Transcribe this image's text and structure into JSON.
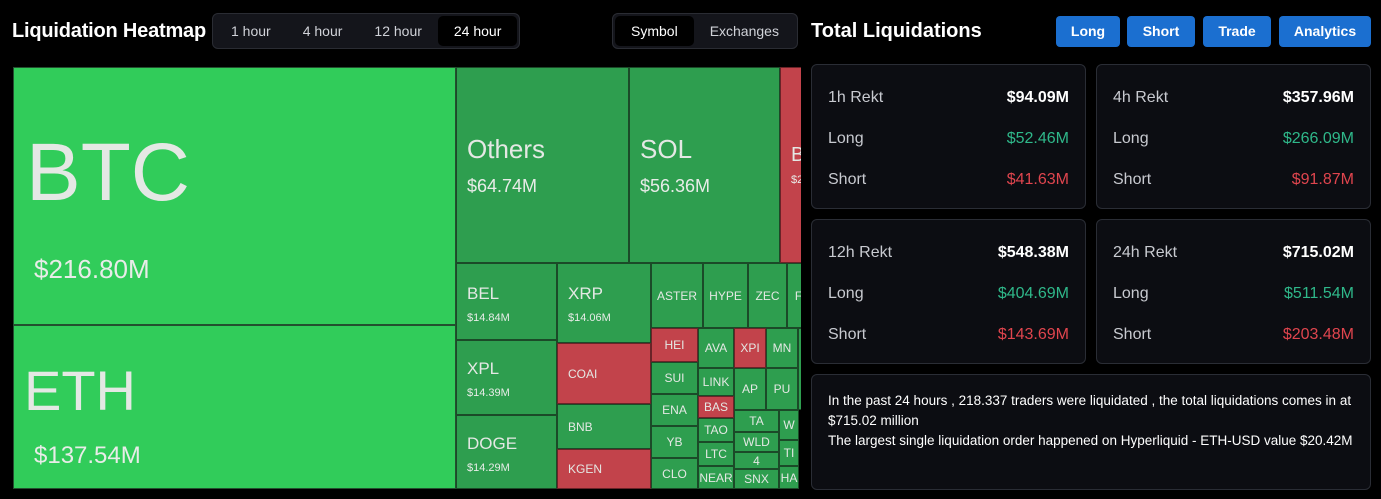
{
  "header": {
    "title": "Liquidation Heatmap",
    "time_tabs": [
      "1 hour",
      "4 hour",
      "12 hour",
      "24 hour"
    ],
    "active_time_tab": "24 hour",
    "view_tabs": [
      "Symbol",
      "Exchanges"
    ],
    "active_view_tab": "Symbol"
  },
  "heatmap": {
    "btc": {
      "symbol": "BTC",
      "value": "$216.80M"
    },
    "eth": {
      "symbol": "ETH",
      "value": "$137.54M"
    },
    "others": {
      "symbol": "Others",
      "value": "$64.74M"
    },
    "sol": {
      "symbol": "SOL",
      "value": "$56.36M"
    },
    "partial": {
      "symbol": "B",
      "value": "$2"
    },
    "bel": {
      "symbol": "BEL",
      "value": "$14.84M"
    },
    "xrp": {
      "symbol": "XRP",
      "value": "$14.06M"
    },
    "xpl": {
      "symbol": "XPL",
      "value": "$14.39M"
    },
    "doge": {
      "symbol": "DOGE",
      "value": "$14.29M"
    },
    "small": [
      "ASTER",
      "HYPE",
      "ZEC",
      "F",
      "HEI",
      "AVA",
      "XPI",
      "MN",
      "COAI",
      "SUI",
      "LINK",
      "AP",
      "PU",
      "BNB",
      "ENA",
      "BAS",
      "TA",
      "W",
      "YB",
      "TAO",
      "WLD",
      "KGEN",
      "LTC",
      "4",
      "TI",
      "CLO",
      "NEAR",
      "SNX",
      "HA"
    ]
  },
  "totals": {
    "title": "Total Liquidations",
    "actions": [
      "Long",
      "Short",
      "Trade",
      "Analytics"
    ],
    "cards": [
      {
        "label": "1h Rekt",
        "total": "$94.09M",
        "long_label": "Long",
        "long": "$52.46M",
        "short_label": "Short",
        "short": "$41.63M"
      },
      {
        "label": "4h Rekt",
        "total": "$357.96M",
        "long_label": "Long",
        "long": "$266.09M",
        "short_label": "Short",
        "short": "$91.87M"
      },
      {
        "label": "12h Rekt",
        "total": "$548.38M",
        "long_label": "Long",
        "long": "$404.69M",
        "short_label": "Short",
        "short": "$143.69M"
      },
      {
        "label": "24h Rekt",
        "total": "$715.02M",
        "long_label": "Long",
        "long": "$511.54M",
        "short_label": "Short",
        "short": "$203.48M"
      }
    ],
    "summary_line1": "In the past 24 hours , 218.337 traders were liquidated , the total liquidations comes in at $715.02 million",
    "summary_line2": "The largest single liquidation order happened on Hyperliquid - ETH-USD value $20.42M"
  },
  "colors": {
    "bright_green": "#31cc5a",
    "green": "#2e9e4f",
    "red": "#c2434b",
    "accent_blue": "#1b6fd0",
    "pos": "#2fb88a",
    "neg": "#e0454e"
  }
}
